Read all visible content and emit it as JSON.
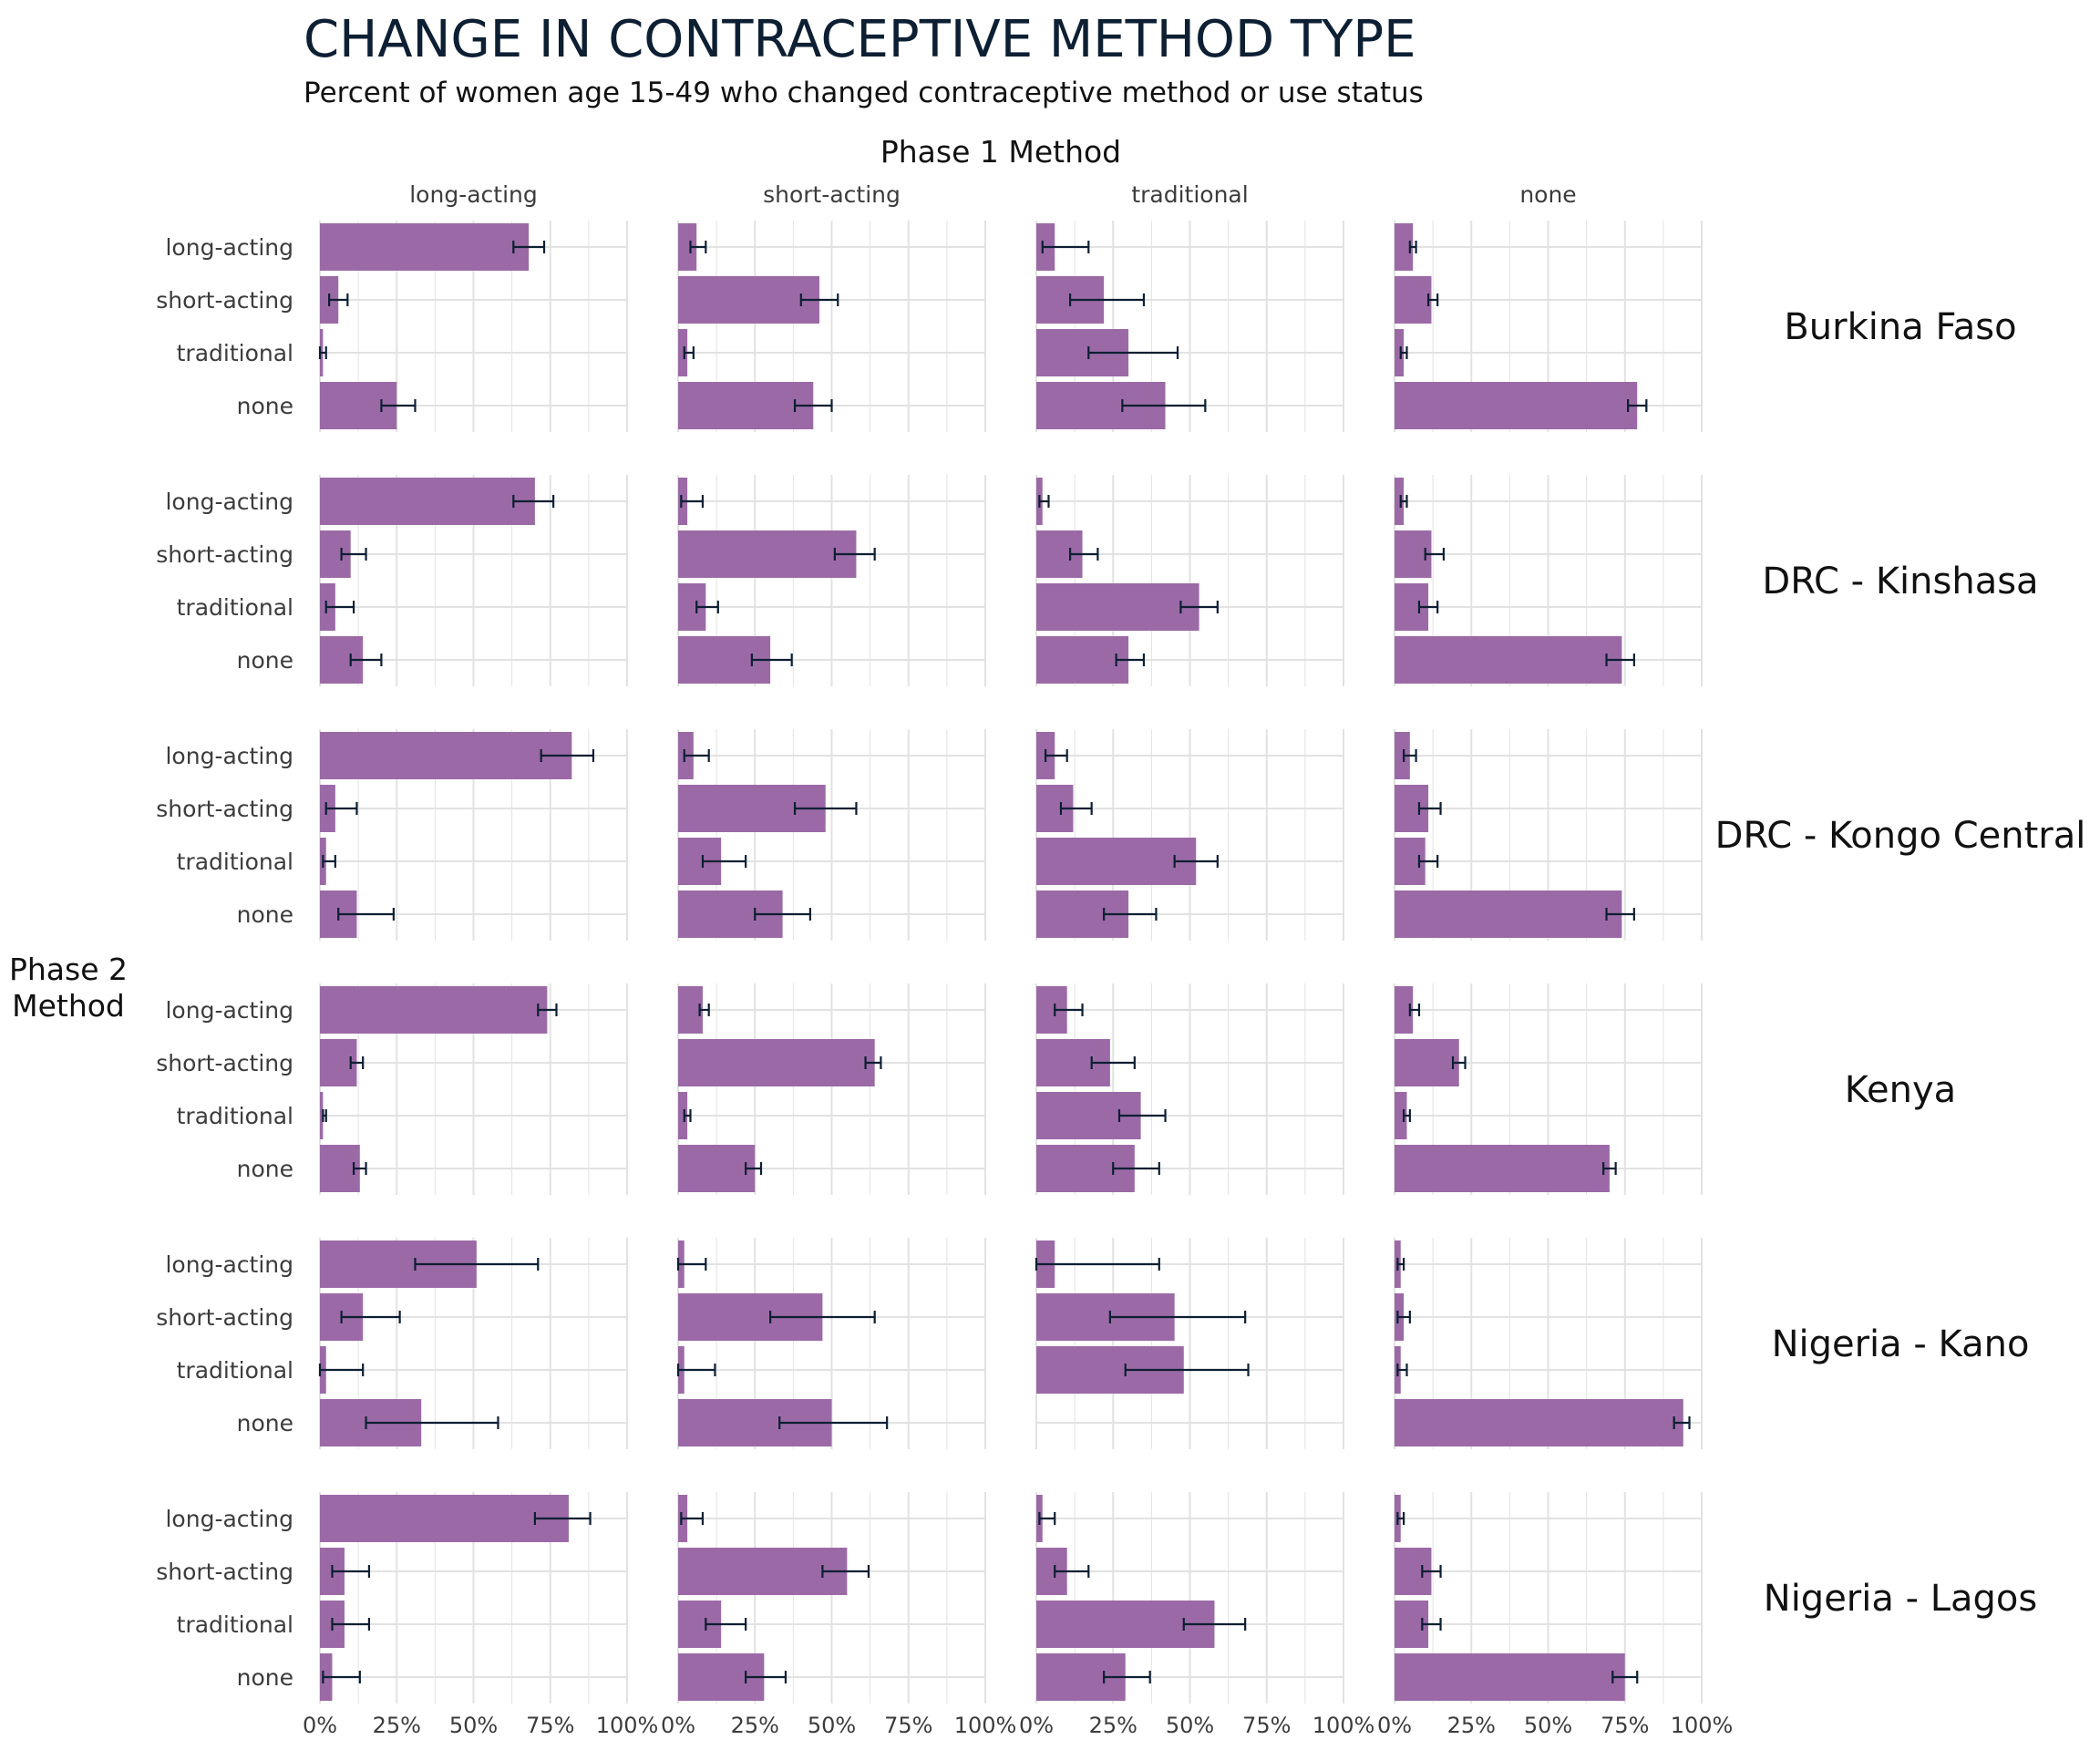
{
  "colors": {
    "bar": "#9b6aa6",
    "error": "#0d1f33",
    "grid": "#e2e2e2"
  },
  "chart_data": {
    "type": "bar",
    "orientation": "horizontal",
    "title": "CHANGE IN CONTRACEPTIVE METHOD TYPE",
    "subtitle": "Percent of women age 15-49 who changed contraceptive method or use status",
    "column_facet_label": "Phase 1 Method",
    "row_facet_label": "Phase 2 Method",
    "phase1_methods": [
      "long-acting",
      "short-acting",
      "traditional",
      "none"
    ],
    "phase2_methods": [
      "long-acting",
      "short-acting",
      "traditional",
      "none"
    ],
    "x_ticks": [
      "0%",
      "25%",
      "50%",
      "75%",
      "100%"
    ],
    "xlim": [
      0,
      100
    ],
    "grid": true,
    "legend": "none",
    "panels": [
      {
        "region": "Burkina Faso",
        "cells": [
          [
            {
              "v": 68,
              "lo": 63,
              "hi": 73
            },
            {
              "v": 6,
              "lo": 3,
              "hi": 9
            },
            {
              "v": 1,
              "lo": 0,
              "hi": 2
            },
            {
              "v": 25,
              "lo": 20,
              "hi": 31
            }
          ],
          [
            {
              "v": 6,
              "lo": 4,
              "hi": 9
            },
            {
              "v": 46,
              "lo": 40,
              "hi": 52
            },
            {
              "v": 3,
              "lo": 2,
              "hi": 5
            },
            {
              "v": 44,
              "lo": 38,
              "hi": 50
            }
          ],
          [
            {
              "v": 6,
              "lo": 2,
              "hi": 17
            },
            {
              "v": 22,
              "lo": 11,
              "hi": 35
            },
            {
              "v": 30,
              "lo": 17,
              "hi": 46
            },
            {
              "v": 42,
              "lo": 28,
              "hi": 55
            }
          ],
          [
            {
              "v": 6,
              "lo": 5,
              "hi": 7
            },
            {
              "v": 12,
              "lo": 11,
              "hi": 14
            },
            {
              "v": 3,
              "lo": 2,
              "hi": 4
            },
            {
              "v": 79,
              "lo": 76,
              "hi": 82
            }
          ]
        ]
      },
      {
        "region": "DRC - Kinshasa",
        "cells": [
          [
            {
              "v": 70,
              "lo": 63,
              "hi": 76
            },
            {
              "v": 10,
              "lo": 7,
              "hi": 15
            },
            {
              "v": 5,
              "lo": 2,
              "hi": 11
            },
            {
              "v": 14,
              "lo": 10,
              "hi": 20
            }
          ],
          [
            {
              "v": 3,
              "lo": 1,
              "hi": 8
            },
            {
              "v": 58,
              "lo": 51,
              "hi": 64
            },
            {
              "v": 9,
              "lo": 6,
              "hi": 13
            },
            {
              "v": 30,
              "lo": 24,
              "hi": 37
            }
          ],
          [
            {
              "v": 2,
              "lo": 1,
              "hi": 4
            },
            {
              "v": 15,
              "lo": 11,
              "hi": 20
            },
            {
              "v": 53,
              "lo": 47,
              "hi": 59
            },
            {
              "v": 30,
              "lo": 26,
              "hi": 35
            }
          ],
          [
            {
              "v": 3,
              "lo": 2,
              "hi": 4
            },
            {
              "v": 12,
              "lo": 10,
              "hi": 16
            },
            {
              "v": 11,
              "lo": 8,
              "hi": 14
            },
            {
              "v": 74,
              "lo": 69,
              "hi": 78
            }
          ]
        ]
      },
      {
        "region": "DRC - Kongo Central",
        "cells": [
          [
            {
              "v": 82,
              "lo": 72,
              "hi": 89
            },
            {
              "v": 5,
              "lo": 2,
              "hi": 12
            },
            {
              "v": 2,
              "lo": 1,
              "hi": 5
            },
            {
              "v": 12,
              "lo": 6,
              "hi": 24
            }
          ],
          [
            {
              "v": 5,
              "lo": 2,
              "hi": 10
            },
            {
              "v": 48,
              "lo": 38,
              "hi": 58
            },
            {
              "v": 14,
              "lo": 8,
              "hi": 22
            },
            {
              "v": 34,
              "lo": 25,
              "hi": 43
            }
          ],
          [
            {
              "v": 6,
              "lo": 3,
              "hi": 10
            },
            {
              "v": 12,
              "lo": 8,
              "hi": 18
            },
            {
              "v": 52,
              "lo": 45,
              "hi": 59
            },
            {
              "v": 30,
              "lo": 22,
              "hi": 39
            }
          ],
          [
            {
              "v": 5,
              "lo": 3,
              "hi": 7
            },
            {
              "v": 11,
              "lo": 8,
              "hi": 15
            },
            {
              "v": 10,
              "lo": 8,
              "hi": 14
            },
            {
              "v": 74,
              "lo": 69,
              "hi": 78
            }
          ]
        ]
      },
      {
        "region": "Kenya",
        "cells": [
          [
            {
              "v": 74,
              "lo": 71,
              "hi": 77
            },
            {
              "v": 12,
              "lo": 10,
              "hi": 14
            },
            {
              "v": 1,
              "lo": 1,
              "hi": 2
            },
            {
              "v": 13,
              "lo": 11,
              "hi": 15
            }
          ],
          [
            {
              "v": 8,
              "lo": 7,
              "hi": 10
            },
            {
              "v": 64,
              "lo": 61,
              "hi": 66
            },
            {
              "v": 3,
              "lo": 2,
              "hi": 4
            },
            {
              "v": 25,
              "lo": 22,
              "hi": 27
            }
          ],
          [
            {
              "v": 10,
              "lo": 6,
              "hi": 15
            },
            {
              "v": 24,
              "lo": 18,
              "hi": 32
            },
            {
              "v": 34,
              "lo": 27,
              "hi": 42
            },
            {
              "v": 32,
              "lo": 25,
              "hi": 40
            }
          ],
          [
            {
              "v": 6,
              "lo": 5,
              "hi": 8
            },
            {
              "v": 21,
              "lo": 19,
              "hi": 23
            },
            {
              "v": 4,
              "lo": 3,
              "hi": 5
            },
            {
              "v": 70,
              "lo": 68,
              "hi": 72
            }
          ]
        ]
      },
      {
        "region": "Nigeria - Kano",
        "cells": [
          [
            {
              "v": 51,
              "lo": 31,
              "hi": 71
            },
            {
              "v": 14,
              "lo": 7,
              "hi": 26
            },
            {
              "v": 2,
              "lo": 0,
              "hi": 14
            },
            {
              "v": 33,
              "lo": 15,
              "hi": 58
            }
          ],
          [
            {
              "v": 2,
              "lo": 0,
              "hi": 9
            },
            {
              "v": 47,
              "lo": 30,
              "hi": 64
            },
            {
              "v": 2,
              "lo": 0,
              "hi": 12
            },
            {
              "v": 50,
              "lo": 33,
              "hi": 68
            }
          ],
          [
            {
              "v": 6,
              "lo": 0,
              "hi": 40
            },
            {
              "v": 45,
              "lo": 24,
              "hi": 68
            },
            {
              "v": 48,
              "lo": 29,
              "hi": 69
            },
            {
              "v": 0,
              "lo": 0,
              "hi": 0
            }
          ],
          [
            {
              "v": 2,
              "lo": 1,
              "hi": 3
            },
            {
              "v": 3,
              "lo": 1,
              "hi": 5
            },
            {
              "v": 2,
              "lo": 1,
              "hi": 4
            },
            {
              "v": 94,
              "lo": 91,
              "hi": 96
            }
          ]
        ]
      },
      {
        "region": "Nigeria - Lagos",
        "cells": [
          [
            {
              "v": 81,
              "lo": 70,
              "hi": 88
            },
            {
              "v": 8,
              "lo": 4,
              "hi": 16
            },
            {
              "v": 8,
              "lo": 4,
              "hi": 16
            },
            {
              "v": 4,
              "lo": 1,
              "hi": 13
            }
          ],
          [
            {
              "v": 3,
              "lo": 1,
              "hi": 8
            },
            {
              "v": 55,
              "lo": 47,
              "hi": 62
            },
            {
              "v": 14,
              "lo": 9,
              "hi": 22
            },
            {
              "v": 28,
              "lo": 22,
              "hi": 35
            }
          ],
          [
            {
              "v": 2,
              "lo": 1,
              "hi": 6
            },
            {
              "v": 10,
              "lo": 6,
              "hi": 17
            },
            {
              "v": 58,
              "lo": 48,
              "hi": 68
            },
            {
              "v": 29,
              "lo": 22,
              "hi": 37
            }
          ],
          [
            {
              "v": 2,
              "lo": 1,
              "hi": 3
            },
            {
              "v": 12,
              "lo": 9,
              "hi": 15
            },
            {
              "v": 11,
              "lo": 9,
              "hi": 15
            },
            {
              "v": 75,
              "lo": 71,
              "hi": 79
            }
          ]
        ]
      }
    ]
  }
}
